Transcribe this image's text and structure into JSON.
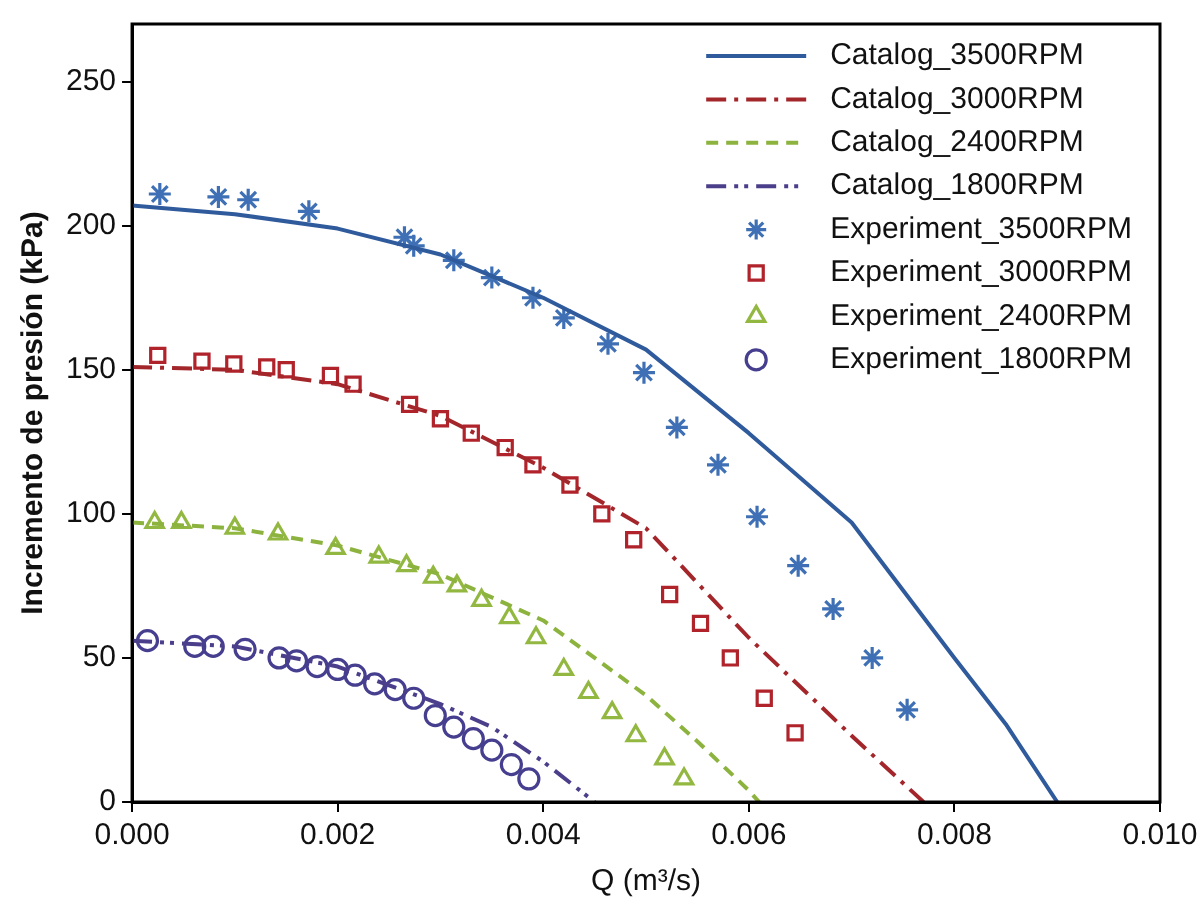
{
  "chart_data": {
    "type": "line",
    "xlabel": "Q (m³/s)",
    "ylabel": "Incremento de presión (kPa)",
    "xlim": [
      0,
      0.01
    ],
    "xticks": [
      {
        "value": 0,
        "label": "0.000"
      },
      {
        "value": 0.002,
        "label": "0.002"
      },
      {
        "value": 0.004,
        "label": "0.004"
      },
      {
        "value": 0.006,
        "label": "0.006"
      },
      {
        "value": 0.008,
        "label": "0.008"
      },
      {
        "value": 0.01,
        "label": "0.010"
      }
    ],
    "ylim": [
      0,
      270
    ],
    "yticks": [
      0,
      50,
      100,
      150,
      200,
      250
    ],
    "grid": false,
    "legend": "top right",
    "series": [
      {
        "name": "Catalog_3500RPM",
        "type": "line",
        "color": "#2f5a9c",
        "line_style": "solid",
        "marker": "none",
        "x": [
          0,
          0.001,
          0.002,
          0.003,
          0.004,
          0.005,
          0.006,
          0.007,
          0.008,
          0.0085,
          0.009
        ],
        "values": [
          207,
          204,
          199,
          190,
          175,
          157,
          128,
          97,
          50,
          27,
          0
        ]
      },
      {
        "name": "Catalog_3000RPM",
        "type": "line",
        "color": "#a3262b",
        "line_style": "dashdot",
        "marker": "none",
        "x": [
          0,
          0.001,
          0.002,
          0.003,
          0.004,
          0.005,
          0.006,
          0.007,
          0.0077
        ],
        "values": [
          151,
          150,
          145,
          134,
          116,
          95,
          57,
          23,
          0
        ]
      },
      {
        "name": "Catalog_2400RPM",
        "type": "line",
        "color": "#8db33f",
        "line_style": "dashed",
        "marker": "none",
        "x": [
          0,
          0.001,
          0.002,
          0.003,
          0.004,
          0.005,
          0.0055,
          0.006,
          0.0061
        ],
        "values": [
          97,
          95,
          89,
          79,
          63,
          37,
          21,
          4,
          0
        ]
      },
      {
        "name": "Catalog_1800RPM",
        "type": "line",
        "color": "#4b3f8c",
        "line_style": "dashdotdot",
        "marker": "none",
        "x": [
          0,
          0.001,
          0.002,
          0.003,
          0.0035,
          0.004,
          0.0045
        ],
        "values": [
          56,
          54,
          47,
          34,
          26,
          14,
          0
        ]
      },
      {
        "name": "Experiment_3500RPM",
        "type": "scatter",
        "color": "#3f70b5",
        "marker": "cross",
        "x": [
          0.00027,
          0.00084,
          0.00113,
          0.00172,
          0.00265,
          0.00274,
          0.00313,
          0.0035,
          0.0039,
          0.0042,
          0.00463,
          0.00498,
          0.0053,
          0.0057,
          0.00608,
          0.00648,
          0.00682,
          0.0072,
          0.00754
        ],
        "values": [
          211,
          210,
          209,
          205,
          196,
          193,
          188,
          182,
          175,
          168,
          159,
          149,
          130,
          117,
          99,
          82,
          67,
          50,
          32
        ]
      },
      {
        "name": "Experiment_3000RPM",
        "type": "scatter",
        "color": "#b0232b",
        "marker": "square",
        "x": [
          0.00025,
          0.00068,
          0.00099,
          0.00131,
          0.0015,
          0.00193,
          0.00215,
          0.0027,
          0.003,
          0.0033,
          0.00363,
          0.0039,
          0.00426,
          0.00457,
          0.00488,
          0.00523,
          0.00553,
          0.00582,
          0.00615,
          0.00645
        ],
        "values": [
          155,
          153,
          152,
          151,
          150,
          148,
          145,
          138,
          133,
          128,
          123,
          117,
          110,
          100,
          91,
          72,
          62,
          50,
          36,
          24
        ]
      },
      {
        "name": "Experiment_2400RPM",
        "type": "scatter",
        "color": "#93b841",
        "marker": "triangle",
        "x": [
          0.00022,
          0.00048,
          0.001,
          0.00142,
          0.00198,
          0.0024,
          0.00267,
          0.00293,
          0.00316,
          0.0034,
          0.00367,
          0.00393,
          0.0042,
          0.00444,
          0.00467,
          0.0049,
          0.00518,
          0.00537
        ],
        "values": [
          97,
          97,
          95,
          93,
          88,
          85,
          82,
          78,
          75,
          70,
          64,
          57,
          46,
          38,
          31,
          23,
          15,
          8
        ]
      },
      {
        "name": "Experiment_1800RPM",
        "type": "scatter",
        "color": "#463e8e",
        "marker": "circle",
        "x": [
          0.00015,
          0.00061,
          0.00079,
          0.0011,
          0.00143,
          0.0016,
          0.0018,
          0.002,
          0.00217,
          0.00236,
          0.00256,
          0.00274,
          0.00295,
          0.00313,
          0.00332,
          0.0035,
          0.00369,
          0.00386
        ],
        "values": [
          56,
          54,
          54,
          53,
          50,
          49,
          47,
          46,
          44,
          41,
          39,
          36,
          30,
          26,
          22,
          18,
          13,
          8
        ]
      }
    ]
  }
}
